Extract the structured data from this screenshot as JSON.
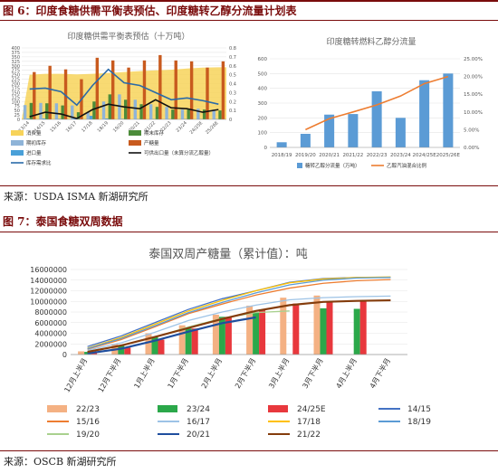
{
  "fig6": {
    "title": "图 6：印度食糖供需平衡表预估、印度糖转乙醇分流量计划表",
    "source": "来源：USDA ISMA 新湖研究所"
  },
  "fig7": {
    "title": "图 7：泰国食糖双周数据",
    "source": "来源：OSCB 新湖研究所"
  },
  "chart_data": [
    {
      "type": "bar",
      "title": "印度糖供需平衡表预估（十万吨）",
      "categories": [
        "13/14",
        "14/15",
        "15/16",
        "16/17",
        "17/18",
        "18/19",
        "19/20",
        "20/21",
        "21/22",
        "22/23",
        "23/24",
        "24/25E",
        "25/26E"
      ],
      "ylim": [
        0,
        400
      ],
      "y2lim": [
        0,
        0.8
      ],
      "yticks": [
        0,
        25,
        50,
        75,
        100,
        125,
        150,
        175,
        200,
        225,
        250,
        275,
        300,
        325,
        350,
        375,
        400
      ],
      "y2ticks": [
        0,
        0.1,
        0.2,
        0.3,
        0.4,
        0.5,
        0.6,
        0.7,
        0.8
      ],
      "series": [
        {
          "name": "消费量",
          "kind": "area",
          "color": "#f7d35a",
          "values": [
            250,
            255,
            255,
            252,
            255,
            260,
            265,
            270,
            275,
            278,
            285,
            290,
            292
          ]
        },
        {
          "name": "期初库存",
          "kind": "bar",
          "color": "#8fb4d8",
          "values": [
            80,
            92,
            90,
            78,
            40,
            100,
            140,
            110,
            85,
            70,
            55,
            60,
            55
          ]
        },
        {
          "name": "进口量",
          "kind": "bar",
          "color": "#4aa0d8",
          "values": [
            5,
            5,
            3,
            10,
            20,
            5,
            3,
            2,
            2,
            2,
            2,
            2,
            2
          ]
        },
        {
          "name": "库存需求比",
          "kind": "line",
          "axis": "y2",
          "color": "#2a6aa8",
          "values": [
            0.34,
            0.35,
            0.31,
            0.16,
            0.38,
            0.56,
            0.41,
            0.38,
            0.3,
            0.22,
            0.24,
            0.21,
            0.17
          ]
        },
        {
          "name": "期末库存",
          "kind": "bar",
          "color": "#4c8c3a",
          "values": [
            92,
            90,
            78,
            40,
            100,
            140,
            110,
            85,
            70,
            55,
            60,
            55,
            50
          ]
        },
        {
          "name": "产糖量",
          "kind": "bar",
          "color": "#c85a1e",
          "values": [
            265,
            300,
            280,
            225,
            345,
            330,
            290,
            330,
            360,
            330,
            325,
            290,
            325
          ]
        },
        {
          "name": "可供出口量（未算分流乙醇量）",
          "kind": "line",
          "color": "#111111",
          "values": [
            15,
            40,
            30,
            5,
            55,
            85,
            70,
            60,
            110,
            65,
            60,
            40,
            55
          ]
        }
      ]
    },
    {
      "type": "bar",
      "title": "印度糖转燃料乙醇分流量",
      "categories": [
        "2018/19",
        "2019/20",
        "2020/21",
        "2021/22",
        "2022/23",
        "2023/24",
        "2024/25E",
        "2025/26E"
      ],
      "ylim": [
        0,
        600
      ],
      "yticks": [
        0,
        100,
        200,
        300,
        400,
        500,
        600
      ],
      "y2lim": [
        0,
        0.25
      ],
      "y2ticks": [
        "0.00%",
        "5.00%",
        "10.00%",
        "15.00%",
        "20.00%",
        "25.00%"
      ],
      "series": [
        {
          "name": "糖转乙醇分流量（万吨）",
          "kind": "bar",
          "color": "#5b9bd5",
          "values": [
            35,
            92,
            222,
            226,
            380,
            200,
            455,
            500
          ]
        },
        {
          "name": "乙醇汽油混合比例",
          "kind": "line",
          "axis": "y2",
          "color": "#ed7d31",
          "values": [
            null,
            0.05,
            0.081,
            0.1,
            0.12,
            0.145,
            0.18,
            0.2
          ]
        }
      ]
    },
    {
      "type": "line",
      "title": "泰国双周产糖量（累计值）：吨",
      "categories": [
        "12月上半月",
        "12月下半月",
        "1月上半月",
        "1月下半月",
        "2月上半月",
        "2月下半月",
        "3月上半月",
        "3月下半月",
        "4月上半月",
        "4月下半月"
      ],
      "ylim": [
        0,
        16000000
      ],
      "yticks": [
        0,
        2000000,
        4000000,
        6000000,
        8000000,
        10000000,
        12000000,
        14000000,
        16000000
      ],
      "ytick_labels": [
        "0",
        "2000000",
        "4000000",
        "6000000",
        "8000000",
        "10000000",
        "12000000",
        "14000000",
        "16000000"
      ],
      "legend_position": "bottom",
      "series": [
        {
          "name": "22/23",
          "kind": "bar",
          "color": "#f4b183",
          "values": [
            600000,
            2000000,
            4000000,
            5500000,
            7500000,
            9200000,
            10700000,
            11100000,
            null,
            null
          ]
        },
        {
          "name": "23/24",
          "kind": "bar",
          "color": "#2ba84a",
          "values": [
            500000,
            1700000,
            3300000,
            4900000,
            7100000,
            8000000,
            null,
            8700000,
            8600000,
            null
          ]
        },
        {
          "name": "24/25E",
          "kind": "bar",
          "color": "#e8383d",
          "values": [
            300000,
            1300000,
            2800000,
            4900000,
            7100000,
            8500000,
            9600000,
            9800000,
            10000000,
            null
          ]
        },
        {
          "name": "14/15",
          "kind": "line",
          "color": "#4472c4",
          "values": [
            1500000,
            3500000,
            6000000,
            8500000,
            10500000,
            12000000,
            13600000,
            14300000,
            14500000,
            14550000
          ]
        },
        {
          "name": "15/16",
          "kind": "line",
          "color": "#ed7d31",
          "values": [
            1000000,
            2800000,
            5200000,
            7700000,
            9500000,
            11200000,
            12500000,
            13400000,
            13900000,
            14100000
          ]
        },
        {
          "name": "16/17",
          "kind": "line",
          "color": "#9dc3e6",
          "values": [
            800000,
            2200000,
            4200000,
            6400000,
            8000000,
            9300000,
            10300000,
            10700000,
            10900000,
            11000000
          ]
        },
        {
          "name": "17/18",
          "kind": "line",
          "color": "#ffc000",
          "values": [
            1200000,
            3200000,
            5700000,
            8200000,
            10200000,
            12000000,
            13500000,
            14200000,
            14500000,
            14600000
          ]
        },
        {
          "name": "18/19",
          "kind": "line",
          "color": "#5b9bd5",
          "values": [
            1100000,
            3000000,
            5400000,
            7900000,
            9800000,
            11600000,
            13100000,
            14000000,
            14400000,
            14500000
          ]
        },
        {
          "name": "19/20",
          "kind": "line",
          "color": "#a9d18e",
          "values": [
            600000,
            1700000,
            3300000,
            5200000,
            6800000,
            7900000,
            8200000,
            null,
            null,
            null
          ]
        },
        {
          "name": "20/21",
          "kind": "line",
          "color": "#1f4e9e",
          "values": [
            200000,
            1100000,
            2600000,
            4300000,
            5900000,
            7000000,
            null,
            null,
            null,
            null
          ]
        },
        {
          "name": "21/22",
          "kind": "line",
          "color": "#843c0c",
          "values": [
            500000,
            1700000,
            3300000,
            5000000,
            6700000,
            8200000,
            9300000,
            9900000,
            10100000,
            10200000
          ]
        }
      ]
    }
  ]
}
